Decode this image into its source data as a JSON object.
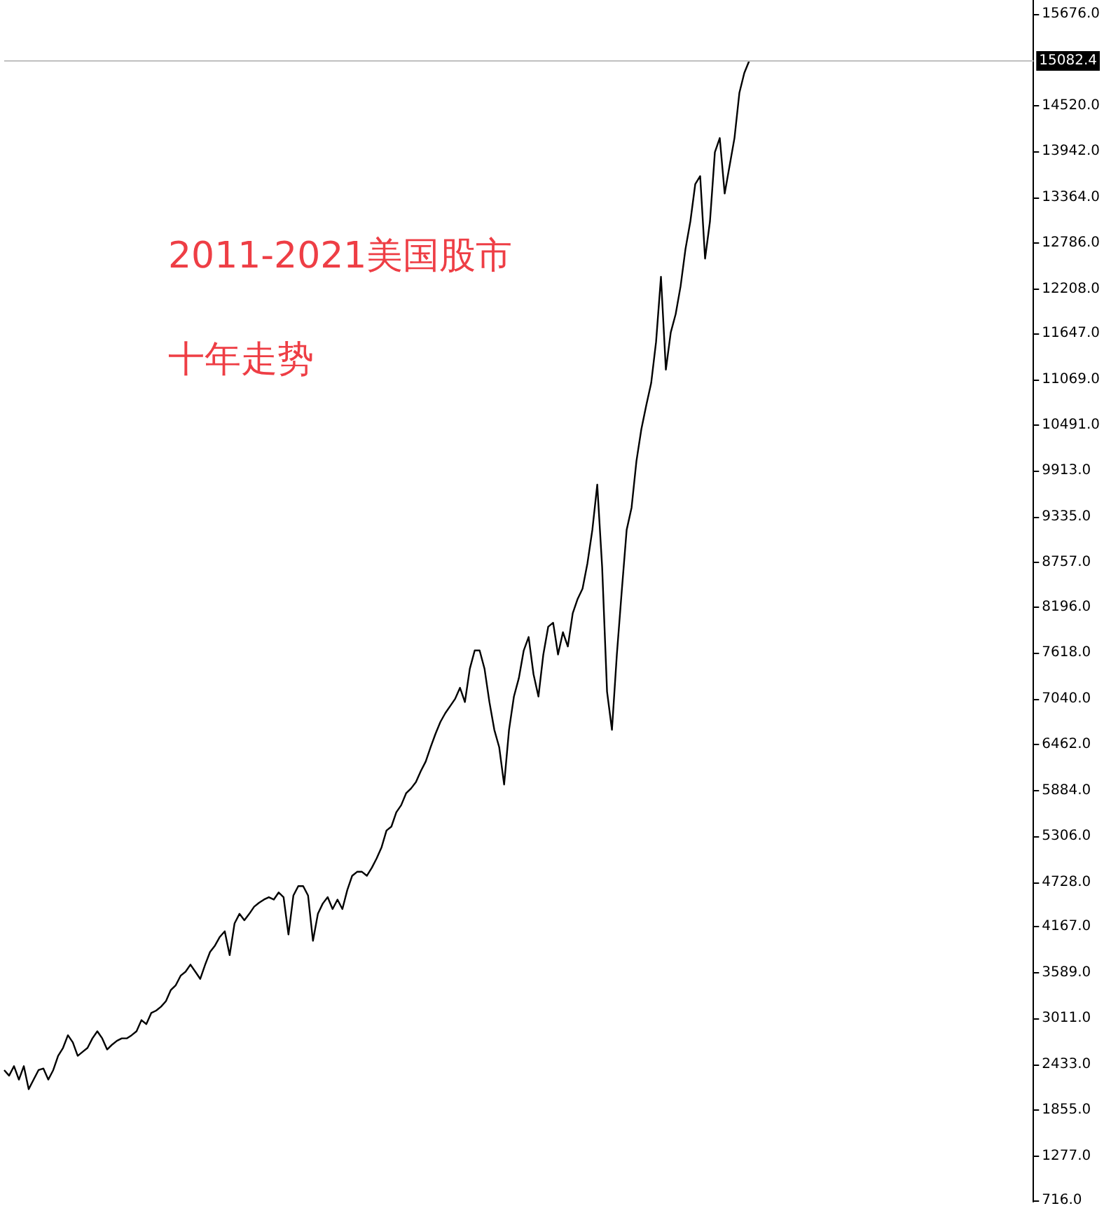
{
  "chart_data": {
    "type": "line",
    "title": "2011-2021美国股市",
    "subtitle": "十年走势",
    "categories": [
      null,
      null,
      null,
      null,
      null,
      null,
      null,
      null,
      null,
      null,
      null,
      null,
      null,
      null,
      null,
      null,
      null,
      null,
      null,
      null,
      null,
      null,
      null,
      null,
      null,
      null,
      null,
      null,
      null,
      null,
      null,
      null,
      null,
      null,
      null,
      null,
      null,
      null,
      null,
      null,
      null,
      null,
      null,
      null,
      null,
      null,
      null,
      null,
      null,
      null,
      null,
      null,
      null,
      null,
      null,
      null,
      null,
      null,
      null,
      null,
      null,
      null,
      null,
      null,
      null,
      null,
      null,
      null,
      null,
      null,
      null,
      null,
      null,
      null,
      null,
      null,
      null,
      null,
      null,
      null,
      null,
      null,
      null,
      null,
      null,
      null,
      null,
      null,
      null,
      null,
      null,
      null,
      null,
      null,
      null,
      null,
      null,
      null,
      null,
      null,
      null,
      null,
      null,
      null,
      null,
      null,
      null,
      null,
      null,
      null,
      null,
      null,
      null,
      null,
      null,
      null,
      null,
      null,
      null,
      null,
      null,
      null,
      null,
      null,
      null,
      null,
      null,
      null,
      null,
      null,
      null,
      null,
      null,
      null,
      null,
      null,
      null,
      null,
      null,
      null,
      null,
      null,
      null,
      null,
      null,
      null,
      null,
      null,
      null,
      null,
      null,
      null,
      null
    ],
    "series": [
      {
        "color": "#000000",
        "values": [
          2360,
          2290,
          2410,
          2240,
          2410,
          2120,
          2240,
          2360,
          2380,
          2240,
          2360,
          2540,
          2640,
          2800,
          2710,
          2540,
          2590,
          2640,
          2760,
          2850,
          2760,
          2620,
          2680,
          2730,
          2760,
          2760,
          2800,
          2850,
          2990,
          2940,
          3080,
          3110,
          3160,
          3230,
          3370,
          3430,
          3550,
          3600,
          3690,
          3600,
          3510,
          3690,
          3850,
          3930,
          4040,
          4110,
          3810,
          4210,
          4330,
          4250,
          4330,
          4420,
          4470,
          4510,
          4540,
          4510,
          4600,
          4540,
          4070,
          4560,
          4680,
          4680,
          4560,
          3990,
          4330,
          4460,
          4540,
          4390,
          4510,
          4390,
          4630,
          4810,
          4860,
          4860,
          4810,
          4910,
          5030,
          5170,
          5380,
          5430,
          5610,
          5700,
          5850,
          5910,
          5990,
          6130,
          6250,
          6430,
          6600,
          6750,
          6860,
          6950,
          7040,
          7180,
          7000,
          7420,
          7650,
          7650,
          7420,
          7000,
          6650,
          6430,
          5960,
          6650,
          7070,
          7300,
          7650,
          7820,
          7350,
          7070,
          7600,
          7950,
          8000,
          7600,
          7880,
          7700,
          8120,
          8300,
          8430,
          8750,
          9170,
          9740,
          8700,
          7130,
          6650,
          7600,
          8400,
          9170,
          9450,
          10040,
          10440,
          10740,
          11020,
          11540,
          12360,
          11190,
          11660,
          11890,
          12240,
          12710,
          13060,
          13530,
          13630,
          12590,
          13060,
          13930,
          14110,
          13410,
          13760,
          14110,
          14680,
          14930,
          15082.4
        ]
      }
    ],
    "ylim": [
      700,
      15850
    ],
    "yticks": [
      {
        "value": 716,
        "label": "716.0"
      },
      {
        "value": 1277,
        "label": "1277.0"
      },
      {
        "value": 1855,
        "label": "1855.0"
      },
      {
        "value": 2433,
        "label": "2433.0"
      },
      {
        "value": 3011,
        "label": "3011.0"
      },
      {
        "value": 3589,
        "label": "3589.0"
      },
      {
        "value": 4167,
        "label": "4167.0"
      },
      {
        "value": 4728,
        "label": "4728.0"
      },
      {
        "value": 5306,
        "label": "5306.0"
      },
      {
        "value": 5884,
        "label": "5884.0"
      },
      {
        "value": 6462,
        "label": "6462.0"
      },
      {
        "value": 7040,
        "label": "7040.0"
      },
      {
        "value": 7618,
        "label": "7618.0"
      },
      {
        "value": 8196,
        "label": "8196.0"
      },
      {
        "value": 8757,
        "label": "8757.0"
      },
      {
        "value": 9335,
        "label": "9335.0"
      },
      {
        "value": 9913,
        "label": "9913.0"
      },
      {
        "value": 10491,
        "label": "10491.0"
      },
      {
        "value": 11069,
        "label": "11069.0"
      },
      {
        "value": 11647,
        "label": "11647.0"
      },
      {
        "value": 12208,
        "label": "12208.0"
      },
      {
        "value": 12786,
        "label": "12786.0"
      },
      {
        "value": 13364,
        "label": "13364.0"
      },
      {
        "value": 13942,
        "label": "13942.0"
      },
      {
        "value": 14520,
        "label": "14520.0"
      },
      {
        "value": 15676,
        "label": "15676.0"
      }
    ],
    "ref_lines": [
      {
        "axis": "y",
        "value": 15082.4,
        "label": "15082.4",
        "color": "#c0c0c0"
      }
    ],
    "marker": "none",
    "line_style": "solid"
  }
}
